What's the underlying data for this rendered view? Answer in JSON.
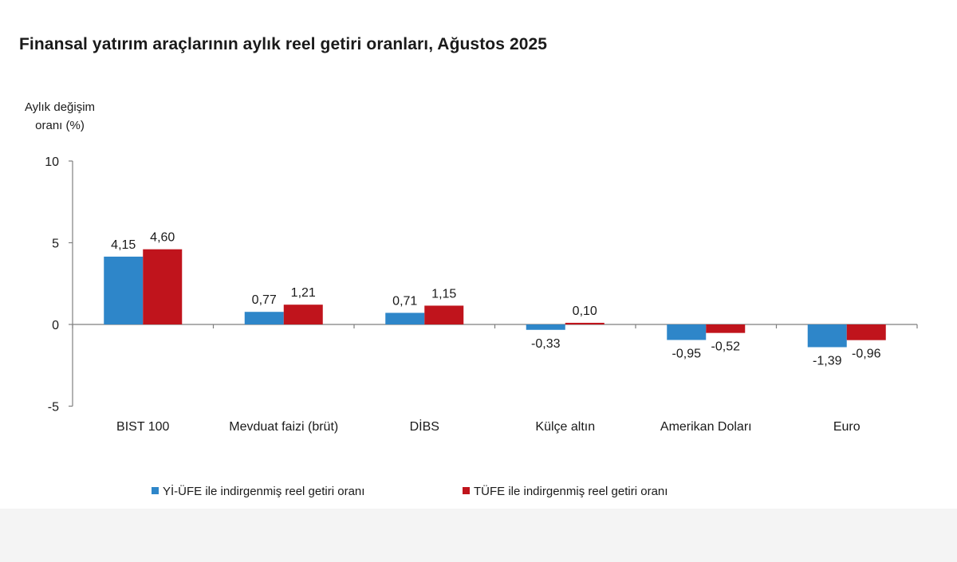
{
  "chart_data": {
    "type": "bar",
    "title": "Finansal yatırım araçlarının aylık reel getiri oranları, Ağustos 2025",
    "ylabel": [
      "Aylık değişim",
      "oranı (%)"
    ],
    "xlabel": "",
    "ylim": [
      -5,
      10
    ],
    "yticks": [
      -5,
      0,
      5,
      10
    ],
    "categories": [
      "BIST 100",
      "Mevduat faizi (brüt)",
      "DİBS",
      "Külçe altın",
      "Amerikan Doları",
      "Euro"
    ],
    "series": [
      {
        "name": "Yİ-ÜFE ile indirgenmiş reel getiri oranı",
        "color": "#2e86c9",
        "values": [
          4.15,
          0.77,
          0.71,
          -0.33,
          -0.95,
          -1.39
        ],
        "labels": [
          "4,15",
          "0,77",
          "0,71",
          "-0,33",
          "-0,95",
          "-1,39"
        ]
      },
      {
        "name": "TÜFE ile indirgenmiş reel getiri oranı",
        "color": "#c0141c",
        "values": [
          4.6,
          1.21,
          1.15,
          0.1,
          -0.52,
          -0.96
        ],
        "labels": [
          "4,60",
          "1,21",
          "1,15",
          "0,10",
          "-0,52",
          "-0,96"
        ]
      }
    ],
    "grid": false,
    "legend_position": "bottom"
  }
}
